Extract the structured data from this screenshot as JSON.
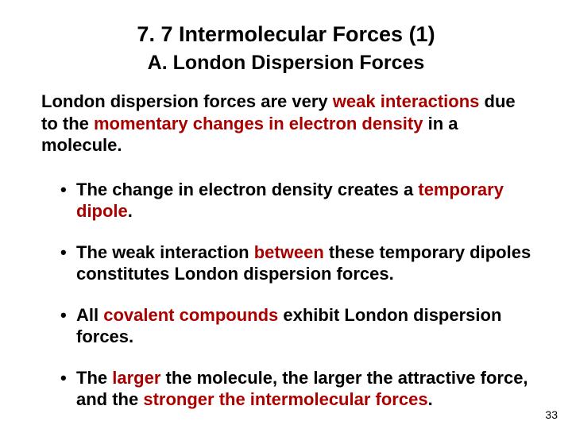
{
  "title": "7. 7   Intermolecular Forces (1)",
  "subtitle_prefix": "A.  ",
  "subtitle_main": "London Dispersion Forces",
  "intro": {
    "p1": "London dispersion forces are very ",
    "p2": "weak interactions",
    "p3": " due to the ",
    "p4": "momentary changes in electron density",
    "p5": " in a molecule."
  },
  "bullets": [
    {
      "a": "The change in electron density creates a ",
      "b": "temporary dipole",
      "c": "."
    },
    {
      "a": "The weak interaction ",
      "b": "between",
      "c": " these temporary dipoles constitutes London dispersion forces."
    },
    {
      "a": "All ",
      "b": "covalent compounds",
      "c": " exhibit London dispersion forces."
    },
    {
      "a": "The ",
      "b": "larger",
      "c": " the molecule, the larger the attractive force, and the ",
      "d": "stronger the intermolecular forces",
      "e": "."
    }
  ],
  "page_number": "33",
  "colors": {
    "highlight": "#aa0000",
    "text": "#000000",
    "background": "#ffffff"
  },
  "fontsizes": {
    "title": 27,
    "subtitle": 25,
    "body": 22,
    "pagenum": 14
  }
}
